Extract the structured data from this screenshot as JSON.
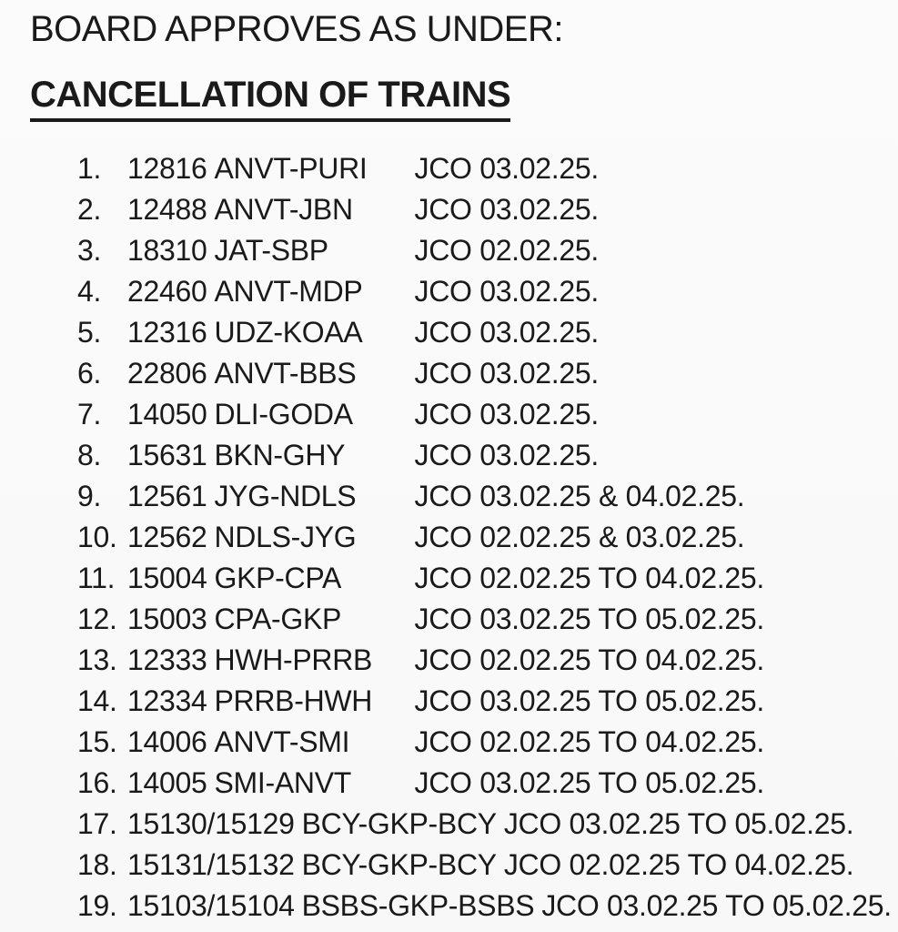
{
  "page": {
    "heading": "BOARD APPROVES AS UNDER:",
    "section_title": "CANCELLATION OF TRAINS",
    "background_color": "#fafafa",
    "text_color": "#1a1a1a"
  },
  "trains": [
    {
      "no": "1.",
      "train": "12816",
      "route": "ANVT-PURI",
      "dates": "JCO 03.02.25."
    },
    {
      "no": "2.",
      "train": "12488",
      "route": "ANVT-JBN",
      "dates": "JCO 03.02.25."
    },
    {
      "no": "3.",
      "train": "18310",
      "route": "JAT-SBP",
      "dates": "JCO 02.02.25."
    },
    {
      "no": "4.",
      "train": "22460",
      "route": "ANVT-MDP",
      "dates": "JCO 03.02.25."
    },
    {
      "no": "5.",
      "train": "12316",
      "route": "UDZ-KOAA",
      "dates": "JCO 03.02.25."
    },
    {
      "no": "6.",
      "train": "22806",
      "route": "ANVT-BBS",
      "dates": "JCO 03.02.25."
    },
    {
      "no": "7.",
      "train": "14050",
      "route": "DLI-GODA",
      "dates": "JCO 03.02.25."
    },
    {
      "no": "8.",
      "train": "15631",
      "route": "BKN-GHY",
      "dates": "JCO 03.02.25."
    },
    {
      "no": "9.",
      "train": "12561",
      "route": "JYG-NDLS",
      "dates": "JCO 03.02.25 & 04.02.25."
    },
    {
      "no": "10.",
      "train": "12562",
      "route": "NDLS-JYG",
      "dates": "JCO 02.02.25 & 03.02.25."
    },
    {
      "no": "11.",
      "train": "15004",
      "route": "GKP-CPA",
      "dates": "JCO 02.02.25 TO 04.02.25."
    },
    {
      "no": "12.",
      "train": "15003",
      "route": "CPA-GKP",
      "dates": "JCO 03.02.25 TO 05.02.25."
    },
    {
      "no": "13.",
      "train": "12333",
      "route": "HWH-PRRB",
      "dates": "JCO 02.02.25 TO 04.02.25."
    },
    {
      "no": "14.",
      "train": "12334",
      "route": "PRRB-HWH",
      "dates": "JCO 03.02.25 TO 05.02.25."
    },
    {
      "no": "15.",
      "train": "14006",
      "route": "ANVT-SMI",
      "dates": "JCO 02.02.25 TO 04.02.25."
    },
    {
      "no": "16.",
      "train": "14005",
      "route": "SMI-ANVT",
      "dates": "JCO 03.02.25 TO 05.02.25."
    },
    {
      "no": "17.",
      "train": "15130/15129",
      "route": "BCY-GKP-BCY",
      "dates": "JCO 03.02.25 TO 05.02.25."
    },
    {
      "no": "18.",
      "train": "15131/15132",
      "route": "BCY-GKP-BCY",
      "dates": "JCO 02.02.25 TO 04.02.25."
    },
    {
      "no": "19.",
      "train": "15103/15104",
      "route": "BSBS-GKP-BSBS",
      "dates": "JCO 03.02.25 TO 05.02.25."
    }
  ]
}
